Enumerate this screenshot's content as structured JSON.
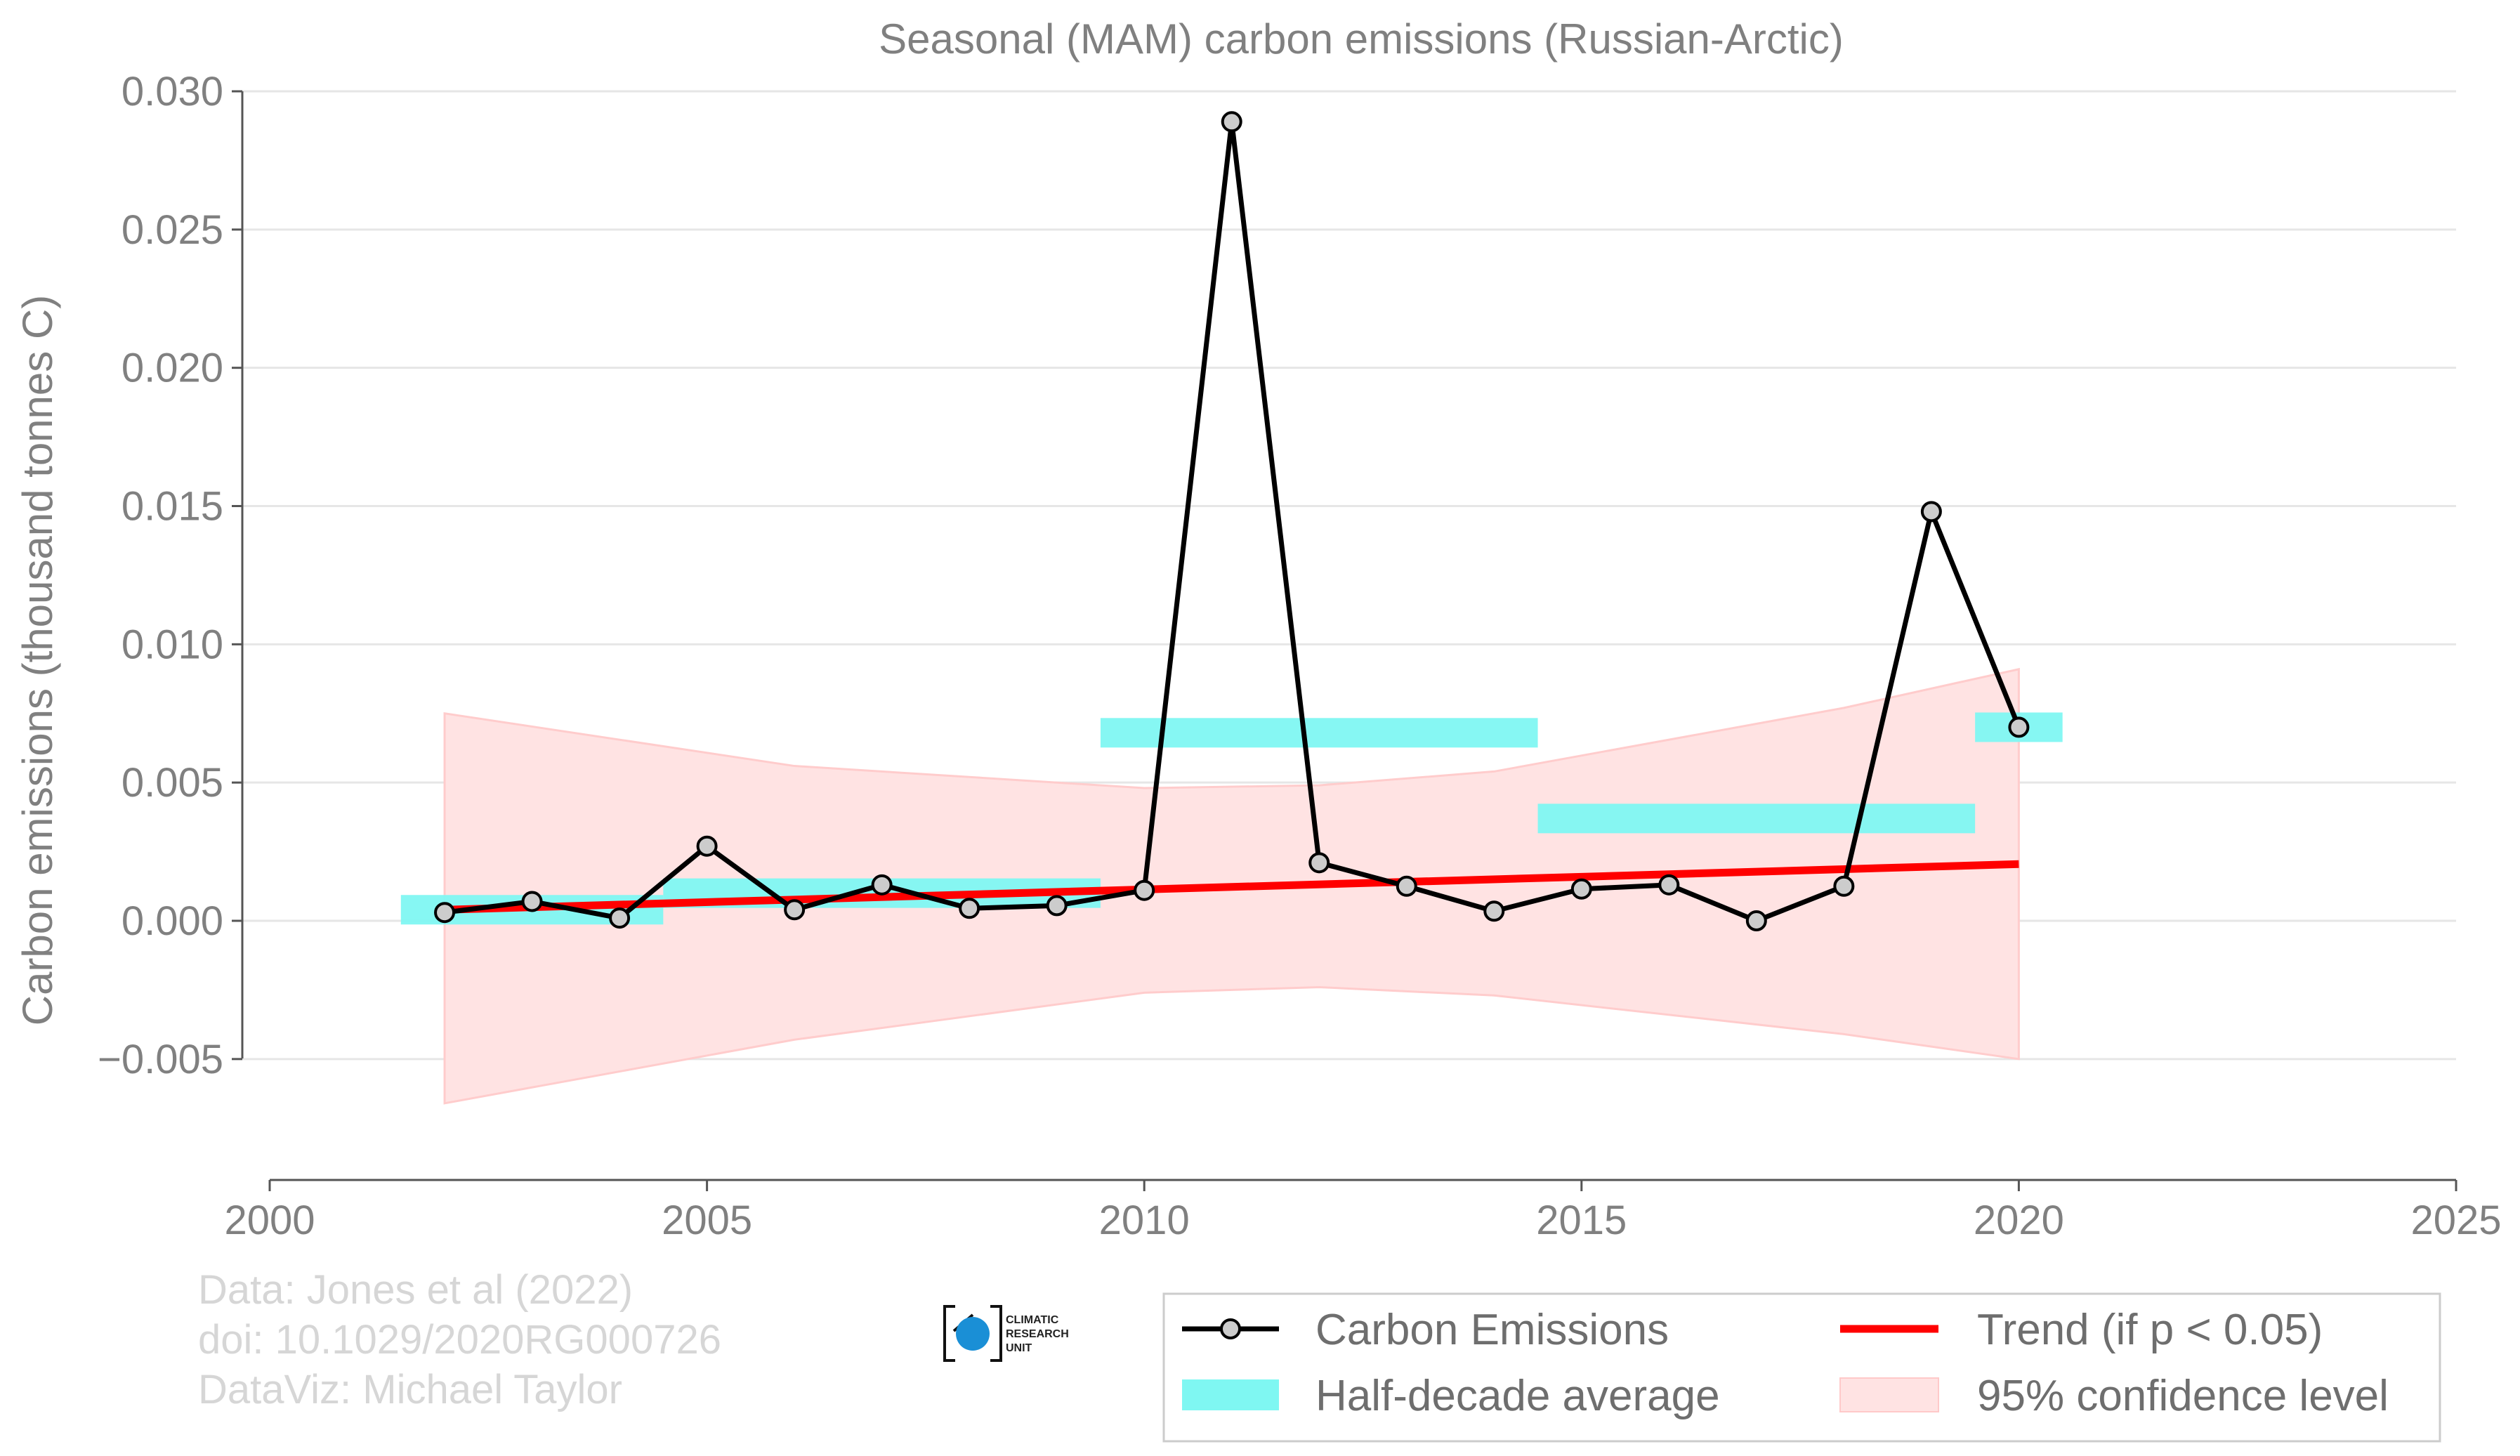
{
  "chart_data": {
    "type": "line",
    "title": "Seasonal (MAM) carbon emissions (Russian-Arctic)",
    "ylabel": "Carbon emissions (thousand tonnes C)",
    "xlabel": "",
    "xlim": [
      2000,
      2025
    ],
    "ylim": [
      -0.0095,
      0.03
    ],
    "xticks": [
      "2000",
      "2005",
      "2010",
      "2015",
      "2020",
      "2025"
    ],
    "yticks": [
      "0.030",
      "0.025",
      "0.020",
      "0.015",
      "0.010",
      "0.005",
      "0.000",
      "−0.005"
    ],
    "grid": "horizontal",
    "series": [
      {
        "name": "Carbon Emissions",
        "color": "#000000",
        "x": [
          2002,
          2003,
          2004,
          2005,
          2006,
          2007,
          2008,
          2009,
          2010,
          2011,
          2012,
          2013,
          2014,
          2015,
          2016,
          2017,
          2018,
          2019,
          2020
        ],
        "values": [
          0.0003,
          0.0007,
          0.0001,
          0.0027,
          0.0004,
          0.0013,
          0.00045,
          0.00055,
          0.0011,
          0.0289,
          0.0021,
          0.00125,
          0.00035,
          0.00115,
          0.0013,
          0.0,
          0.00125,
          0.0148,
          0.007
        ]
      },
      {
        "name": "Half-decade average",
        "color": "#7ff7f2",
        "segments": [
          {
            "x0": 2001.5,
            "x1": 2004.5,
            "value": 0.0004
          },
          {
            "x0": 2004.5,
            "x1": 2009.5,
            "value": 0.001
          },
          {
            "x0": 2009.5,
            "x1": 2014.5,
            "value": 0.0068
          },
          {
            "x0": 2014.5,
            "x1": 2019.5,
            "value": 0.0037
          },
          {
            "x0": 2019.5,
            "x1": 2020.5,
            "value": 0.007
          }
        ]
      },
      {
        "name": "Trend (if p < 0.05)",
        "color": "#ff0000",
        "x": [
          2002,
          2020
        ],
        "values": [
          0.0004,
          0.00205
        ]
      },
      {
        "name": "95% confidence level",
        "color": "#ffd6d6",
        "x": [
          2002,
          2006,
          2010,
          2012,
          2014,
          2018,
          2020
        ],
        "upper": [
          0.0075,
          0.0056,
          0.0048,
          0.0049,
          0.0054,
          0.0077,
          0.0091
        ],
        "lower": [
          -0.0066,
          -0.0043,
          -0.0026,
          -0.0024,
          -0.0027,
          -0.0041,
          -0.005
        ]
      }
    ],
    "legend": {
      "position": "bottom-right",
      "entries": [
        "Carbon Emissions",
        "Trend (if p < 0.05)",
        "Half-decade average",
        "95% confidence level"
      ]
    }
  },
  "credits": {
    "line1": "Data: Jones et al (2022)",
    "line2": "doi: 10.1029/2020RG000726",
    "line3": "DataViz: Michael Taylor"
  },
  "logo": {
    "line1": "CLIMATIC",
    "line2": "RESEARCH",
    "line3": "UNIT"
  }
}
